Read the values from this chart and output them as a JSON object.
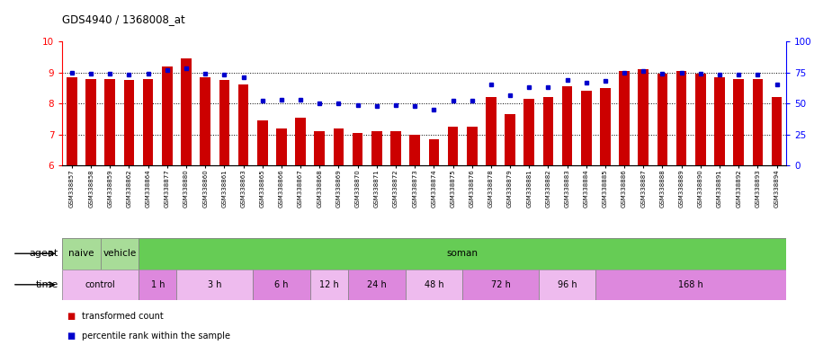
{
  "title": "GDS4940 / 1368008_at",
  "samples": [
    "GSM338857",
    "GSM338858",
    "GSM338859",
    "GSM338862",
    "GSM338864",
    "GSM338877",
    "GSM338880",
    "GSM338860",
    "GSM338861",
    "GSM338863",
    "GSM338865",
    "GSM338866",
    "GSM338867",
    "GSM338868",
    "GSM338869",
    "GSM338870",
    "GSM338871",
    "GSM338872",
    "GSM338873",
    "GSM338874",
    "GSM338875",
    "GSM338876",
    "GSM338878",
    "GSM338879",
    "GSM338881",
    "GSM338882",
    "GSM338883",
    "GSM338884",
    "GSM338885",
    "GSM338886",
    "GSM338887",
    "GSM338888",
    "GSM338889",
    "GSM338890",
    "GSM338891",
    "GSM338892",
    "GSM338893",
    "GSM338894"
  ],
  "bar_values": [
    8.85,
    8.8,
    8.8,
    8.75,
    8.8,
    9.2,
    9.45,
    8.85,
    8.75,
    8.6,
    7.45,
    7.2,
    7.55,
    7.1,
    7.2,
    7.05,
    7.1,
    7.1,
    7.0,
    6.85,
    7.25,
    7.25,
    8.2,
    7.65,
    8.15,
    8.2,
    8.55,
    8.4,
    8.5,
    9.05,
    9.1,
    8.95,
    9.05,
    8.95,
    8.85,
    8.8,
    8.8,
    8.2
  ],
  "dot_values": [
    75,
    74,
    74,
    73,
    74,
    77,
    78,
    74,
    73,
    71,
    52,
    53,
    53,
    50,
    50,
    49,
    48,
    49,
    48,
    45,
    52,
    52,
    65,
    57,
    63,
    63,
    69,
    67,
    68,
    75,
    76,
    74,
    75,
    74,
    73,
    73,
    73,
    65
  ],
  "ylim_left": [
    6,
    10
  ],
  "ylim_right": [
    0,
    100
  ],
  "yticks_left": [
    6,
    7,
    8,
    9,
    10
  ],
  "yticks_right": [
    0,
    25,
    50,
    75,
    100
  ],
  "bar_color": "#cc0000",
  "dot_color": "#0000cc",
  "bar_bottom": 6,
  "naive_color": "#a8dc98",
  "vehicle_color": "#a8dc98",
  "soman_color": "#66cc55",
  "agent_spans": [
    {
      "label": "naive",
      "start": 0,
      "end": 2
    },
    {
      "label": "vehicle",
      "start": 2,
      "end": 4
    },
    {
      "label": "soman",
      "start": 4,
      "end": 38
    }
  ],
  "time_spans": [
    {
      "label": "control",
      "start": 0,
      "end": 4,
      "light": true
    },
    {
      "label": "1 h",
      "start": 4,
      "end": 6,
      "light": false
    },
    {
      "label": "3 h",
      "start": 6,
      "end": 10,
      "light": true
    },
    {
      "label": "6 h",
      "start": 10,
      "end": 13,
      "light": false
    },
    {
      "label": "12 h",
      "start": 13,
      "end": 15,
      "light": true
    },
    {
      "label": "24 h",
      "start": 15,
      "end": 18,
      "light": false
    },
    {
      "label": "48 h",
      "start": 18,
      "end": 21,
      "light": true
    },
    {
      "label": "72 h",
      "start": 21,
      "end": 25,
      "light": false
    },
    {
      "label": "96 h",
      "start": 25,
      "end": 28,
      "light": true
    },
    {
      "label": "168 h",
      "start": 28,
      "end": 38,
      "light": false
    }
  ],
  "time_color_light": "#eebbee",
  "time_color_dark": "#dd88dd",
  "legend_items": [
    {
      "label": "transformed count",
      "color": "#cc0000"
    },
    {
      "label": "percentile rank within the sample",
      "color": "#0000cc"
    }
  ]
}
